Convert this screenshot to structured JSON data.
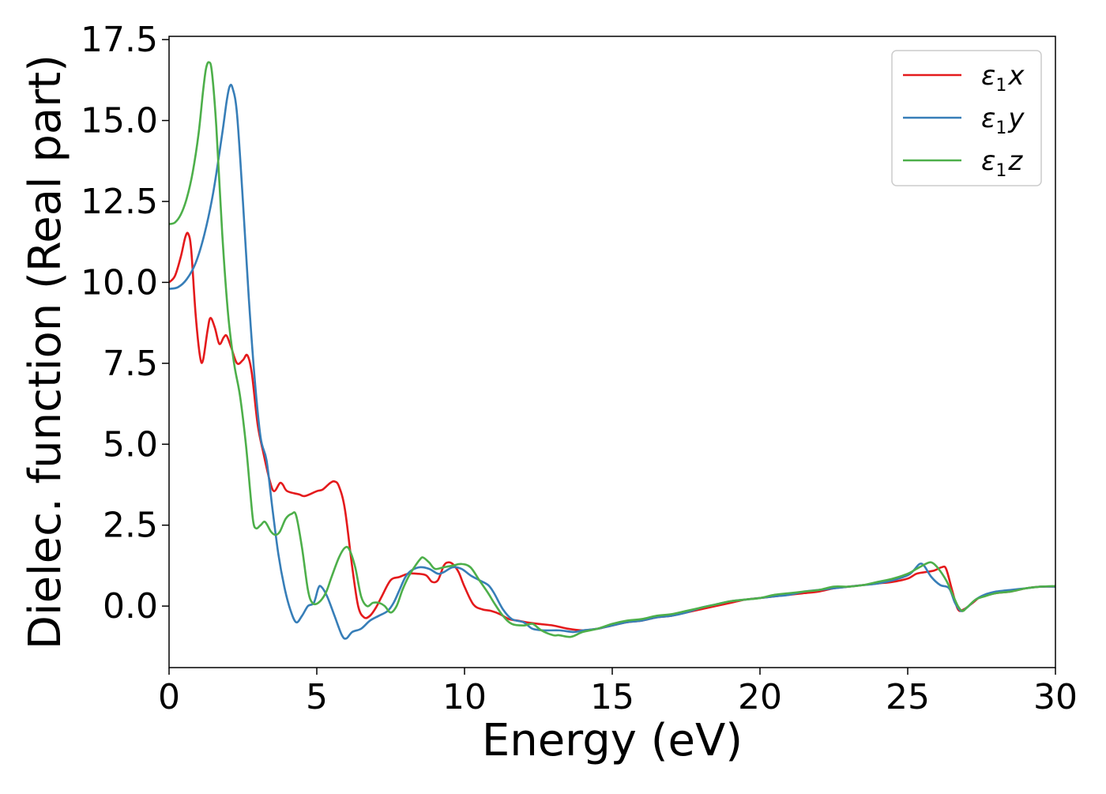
{
  "chart_data": {
    "type": "line",
    "title": "",
    "xlabel": "Energy (eV)",
    "ylabel": "Dielec. function (Real part)",
    "xlim": [
      0,
      30
    ],
    "ylim": [
      -1.9,
      17.6
    ],
    "xticks": [
      0,
      5,
      10,
      15,
      20,
      25,
      30
    ],
    "yticks": [
      0.0,
      2.5,
      5.0,
      7.5,
      10.0,
      12.5,
      15.0,
      17.5
    ],
    "xtick_labels": [
      "0",
      "5",
      "10",
      "15",
      "20",
      "25",
      "30"
    ],
    "ytick_labels": [
      "0.0",
      "2.5",
      "5.0",
      "7.5",
      "10.0",
      "12.5",
      "15.0",
      "17.5"
    ],
    "grid": false,
    "legend_position": "top-right",
    "series": [
      {
        "name": "x",
        "legend_symbol": "ε",
        "legend_subscript": "1",
        "legend_var": "x",
        "color": "#e41a1c",
        "points": [
          [
            0,
            10.0
          ],
          [
            0.2,
            10.2
          ],
          [
            0.4,
            10.8
          ],
          [
            0.55,
            11.4
          ],
          [
            0.65,
            11.5
          ],
          [
            0.75,
            11.0
          ],
          [
            0.9,
            9.0
          ],
          [
            1.05,
            7.7
          ],
          [
            1.15,
            7.6
          ],
          [
            1.3,
            8.5
          ],
          [
            1.4,
            8.9
          ],
          [
            1.55,
            8.6
          ],
          [
            1.7,
            8.1
          ],
          [
            1.85,
            8.3
          ],
          [
            1.95,
            8.35
          ],
          [
            2.1,
            8.0
          ],
          [
            2.3,
            7.5
          ],
          [
            2.5,
            7.6
          ],
          [
            2.65,
            7.75
          ],
          [
            2.8,
            7.2
          ],
          [
            3.0,
            5.6
          ],
          [
            3.2,
            4.7
          ],
          [
            3.4,
            3.9
          ],
          [
            3.55,
            3.55
          ],
          [
            3.75,
            3.8
          ],
          [
            3.85,
            3.75
          ],
          [
            4.0,
            3.55
          ],
          [
            4.4,
            3.45
          ],
          [
            4.6,
            3.4
          ],
          [
            5.0,
            3.55
          ],
          [
            5.2,
            3.6
          ],
          [
            5.45,
            3.8
          ],
          [
            5.6,
            3.85
          ],
          [
            5.75,
            3.7
          ],
          [
            5.95,
            3.0
          ],
          [
            6.2,
            1.2
          ],
          [
            6.4,
            0.0
          ],
          [
            6.6,
            -0.35
          ],
          [
            6.8,
            -0.3
          ],
          [
            7.0,
            -0.05
          ],
          [
            7.2,
            0.3
          ],
          [
            7.5,
            0.8
          ],
          [
            7.8,
            0.9
          ],
          [
            8.1,
            1.0
          ],
          [
            8.4,
            1.0
          ],
          [
            8.7,
            0.95
          ],
          [
            8.9,
            0.75
          ],
          [
            9.1,
            0.8
          ],
          [
            9.3,
            1.25
          ],
          [
            9.45,
            1.35
          ],
          [
            9.6,
            1.3
          ],
          [
            9.8,
            1.05
          ],
          [
            10.0,
            0.6
          ],
          [
            10.3,
            0.05
          ],
          [
            10.6,
            -0.1
          ],
          [
            10.9,
            -0.15
          ],
          [
            11.2,
            -0.25
          ],
          [
            11.5,
            -0.4
          ],
          [
            11.8,
            -0.45
          ],
          [
            12.1,
            -0.5
          ],
          [
            12.5,
            -0.55
          ],
          [
            13.0,
            -0.6
          ],
          [
            13.5,
            -0.7
          ],
          [
            14.0,
            -0.75
          ],
          [
            14.5,
            -0.7
          ],
          [
            15.0,
            -0.6
          ],
          [
            15.5,
            -0.5
          ],
          [
            16.0,
            -0.45
          ],
          [
            16.5,
            -0.35
          ],
          [
            17.0,
            -0.3
          ],
          [
            17.5,
            -0.2
          ],
          [
            18.0,
            -0.1
          ],
          [
            18.5,
            0.0
          ],
          [
            19.0,
            0.1
          ],
          [
            19.5,
            0.2
          ],
          [
            20.0,
            0.25
          ],
          [
            20.5,
            0.3
          ],
          [
            21.0,
            0.35
          ],
          [
            21.5,
            0.4
          ],
          [
            22.0,
            0.45
          ],
          [
            22.5,
            0.55
          ],
          [
            23.0,
            0.6
          ],
          [
            23.5,
            0.65
          ],
          [
            24.0,
            0.7
          ],
          [
            24.5,
            0.75
          ],
          [
            25.0,
            0.85
          ],
          [
            25.3,
            1.0
          ],
          [
            25.6,
            1.05
          ],
          [
            25.9,
            1.1
          ],
          [
            26.15,
            1.2
          ],
          [
            26.3,
            1.15
          ],
          [
            26.5,
            0.5
          ],
          [
            26.7,
            -0.1
          ],
          [
            26.9,
            -0.1
          ],
          [
            27.2,
            0.1
          ],
          [
            27.5,
            0.3
          ],
          [
            28.0,
            0.4
          ],
          [
            28.5,
            0.45
          ],
          [
            29.0,
            0.55
          ],
          [
            29.5,
            0.6
          ],
          [
            30.0,
            0.6
          ]
        ]
      },
      {
        "name": "y",
        "legend_symbol": "ε",
        "legend_subscript": "1",
        "legend_var": "y",
        "color": "#377eb8",
        "points": [
          [
            0,
            9.8
          ],
          [
            0.3,
            9.85
          ],
          [
            0.6,
            10.1
          ],
          [
            0.9,
            10.6
          ],
          [
            1.2,
            11.5
          ],
          [
            1.5,
            12.8
          ],
          [
            1.8,
            14.6
          ],
          [
            1.95,
            15.6
          ],
          [
            2.05,
            16.05
          ],
          [
            2.15,
            16.0
          ],
          [
            2.3,
            15.2
          ],
          [
            2.5,
            12.5
          ],
          [
            2.7,
            9.5
          ],
          [
            2.9,
            7.0
          ],
          [
            3.1,
            5.2
          ],
          [
            3.3,
            4.5
          ],
          [
            3.5,
            3.0
          ],
          [
            3.7,
            1.6
          ],
          [
            3.9,
            0.6
          ],
          [
            4.1,
            -0.1
          ],
          [
            4.3,
            -0.5
          ],
          [
            4.5,
            -0.3
          ],
          [
            4.7,
            0.0
          ],
          [
            4.9,
            0.1
          ],
          [
            5.05,
            0.55
          ],
          [
            5.15,
            0.6
          ],
          [
            5.35,
            0.3
          ],
          [
            5.6,
            -0.3
          ],
          [
            5.85,
            -0.9
          ],
          [
            6.0,
            -1.0
          ],
          [
            6.2,
            -0.8
          ],
          [
            6.5,
            -0.7
          ],
          [
            6.8,
            -0.45
          ],
          [
            7.1,
            -0.3
          ],
          [
            7.4,
            -0.15
          ],
          [
            7.6,
            0.1
          ],
          [
            7.8,
            0.5
          ],
          [
            8.0,
            0.9
          ],
          [
            8.2,
            1.1
          ],
          [
            8.5,
            1.2
          ],
          [
            8.8,
            1.15
          ],
          [
            9.1,
            1.0
          ],
          [
            9.3,
            1.05
          ],
          [
            9.6,
            1.2
          ],
          [
            9.9,
            1.15
          ],
          [
            10.2,
            0.95
          ],
          [
            10.5,
            0.8
          ],
          [
            10.8,
            0.65
          ],
          [
            11.0,
            0.4
          ],
          [
            11.3,
            -0.1
          ],
          [
            11.6,
            -0.4
          ],
          [
            12.0,
            -0.5
          ],
          [
            12.3,
            -0.7
          ],
          [
            12.7,
            -0.75
          ],
          [
            13.2,
            -0.75
          ],
          [
            13.7,
            -0.8
          ],
          [
            14.0,
            -0.75
          ],
          [
            14.5,
            -0.7
          ],
          [
            15.0,
            -0.6
          ],
          [
            15.5,
            -0.5
          ],
          [
            16.0,
            -0.45
          ],
          [
            16.5,
            -0.35
          ],
          [
            17.0,
            -0.3
          ],
          [
            17.5,
            -0.2
          ],
          [
            18.0,
            -0.05
          ],
          [
            18.5,
            0.05
          ],
          [
            19.0,
            0.15
          ],
          [
            19.5,
            0.2
          ],
          [
            20.0,
            0.25
          ],
          [
            20.5,
            0.3
          ],
          [
            21.0,
            0.35
          ],
          [
            21.5,
            0.45
          ],
          [
            22.0,
            0.5
          ],
          [
            22.5,
            0.55
          ],
          [
            23.0,
            0.6
          ],
          [
            23.5,
            0.65
          ],
          [
            24.0,
            0.7
          ],
          [
            24.5,
            0.8
          ],
          [
            25.0,
            0.95
          ],
          [
            25.2,
            1.1
          ],
          [
            25.4,
            1.3
          ],
          [
            25.55,
            1.25
          ],
          [
            25.8,
            0.9
          ],
          [
            26.1,
            0.65
          ],
          [
            26.4,
            0.55
          ],
          [
            26.6,
            0.1
          ],
          [
            26.8,
            -0.15
          ],
          [
            27.0,
            -0.05
          ],
          [
            27.3,
            0.2
          ],
          [
            27.6,
            0.35
          ],
          [
            28.0,
            0.45
          ],
          [
            28.5,
            0.5
          ],
          [
            29.0,
            0.55
          ],
          [
            29.5,
            0.6
          ],
          [
            30.0,
            0.6
          ]
        ]
      },
      {
        "name": "z",
        "legend_symbol": "ε",
        "legend_subscript": "1",
        "legend_var": "z",
        "color": "#4daf4a",
        "points": [
          [
            0,
            11.8
          ],
          [
            0.2,
            11.85
          ],
          [
            0.4,
            12.1
          ],
          [
            0.6,
            12.6
          ],
          [
            0.8,
            13.4
          ],
          [
            1.0,
            14.6
          ],
          [
            1.15,
            15.9
          ],
          [
            1.25,
            16.6
          ],
          [
            1.35,
            16.8
          ],
          [
            1.45,
            16.5
          ],
          [
            1.6,
            14.8
          ],
          [
            1.8,
            11.5
          ],
          [
            2.0,
            9.0
          ],
          [
            2.2,
            7.5
          ],
          [
            2.4,
            6.5
          ],
          [
            2.6,
            5.0
          ],
          [
            2.75,
            3.5
          ],
          [
            2.85,
            2.6
          ],
          [
            2.95,
            2.4
          ],
          [
            3.1,
            2.5
          ],
          [
            3.25,
            2.6
          ],
          [
            3.45,
            2.3
          ],
          [
            3.6,
            2.2
          ],
          [
            3.75,
            2.3
          ],
          [
            3.95,
            2.7
          ],
          [
            4.15,
            2.85
          ],
          [
            4.3,
            2.8
          ],
          [
            4.5,
            1.8
          ],
          [
            4.7,
            0.5
          ],
          [
            4.85,
            0.1
          ],
          [
            5.05,
            0.1
          ],
          [
            5.3,
            0.4
          ],
          [
            5.5,
            0.9
          ],
          [
            5.75,
            1.5
          ],
          [
            5.95,
            1.8
          ],
          [
            6.1,
            1.75
          ],
          [
            6.3,
            1.2
          ],
          [
            6.5,
            0.3
          ],
          [
            6.7,
            0.0
          ],
          [
            6.9,
            0.1
          ],
          [
            7.1,
            0.1
          ],
          [
            7.3,
            0.0
          ],
          [
            7.5,
            -0.2
          ],
          [
            7.7,
            0.0
          ],
          [
            7.9,
            0.5
          ],
          [
            8.1,
            0.9
          ],
          [
            8.3,
            1.2
          ],
          [
            8.5,
            1.45
          ],
          [
            8.6,
            1.5
          ],
          [
            8.8,
            1.35
          ],
          [
            9.0,
            1.15
          ],
          [
            9.3,
            1.2
          ],
          [
            9.6,
            1.25
          ],
          [
            9.9,
            1.3
          ],
          [
            10.2,
            1.2
          ],
          [
            10.5,
            0.8
          ],
          [
            10.8,
            0.4
          ],
          [
            11.0,
            0.1
          ],
          [
            11.3,
            -0.3
          ],
          [
            11.6,
            -0.55
          ],
          [
            12.0,
            -0.6
          ],
          [
            12.3,
            -0.55
          ],
          [
            12.6,
            -0.75
          ],
          [
            13.0,
            -0.9
          ],
          [
            13.2,
            -0.9
          ],
          [
            13.6,
            -0.95
          ],
          [
            14.0,
            -0.8
          ],
          [
            14.5,
            -0.7
          ],
          [
            15.0,
            -0.55
          ],
          [
            15.5,
            -0.45
          ],
          [
            16.0,
            -0.4
          ],
          [
            16.5,
            -0.3
          ],
          [
            17.0,
            -0.25
          ],
          [
            17.5,
            -0.15
          ],
          [
            18.0,
            -0.05
          ],
          [
            18.5,
            0.05
          ],
          [
            19.0,
            0.15
          ],
          [
            19.5,
            0.2
          ],
          [
            20.0,
            0.25
          ],
          [
            20.5,
            0.35
          ],
          [
            21.0,
            0.4
          ],
          [
            21.5,
            0.45
          ],
          [
            22.0,
            0.5
          ],
          [
            22.5,
            0.6
          ],
          [
            23.0,
            0.6
          ],
          [
            23.5,
            0.65
          ],
          [
            24.0,
            0.75
          ],
          [
            24.5,
            0.85
          ],
          [
            25.0,
            1.0
          ],
          [
            25.3,
            1.15
          ],
          [
            25.6,
            1.3
          ],
          [
            25.8,
            1.35
          ],
          [
            26.0,
            1.2
          ],
          [
            26.3,
            0.8
          ],
          [
            26.5,
            0.4
          ],
          [
            26.7,
            0.0
          ],
          [
            26.85,
            -0.15
          ],
          [
            27.0,
            -0.05
          ],
          [
            27.3,
            0.2
          ],
          [
            27.6,
            0.3
          ],
          [
            28.0,
            0.4
          ],
          [
            28.5,
            0.45
          ],
          [
            29.0,
            0.55
          ],
          [
            29.5,
            0.6
          ],
          [
            30.0,
            0.62
          ]
        ]
      }
    ]
  }
}
